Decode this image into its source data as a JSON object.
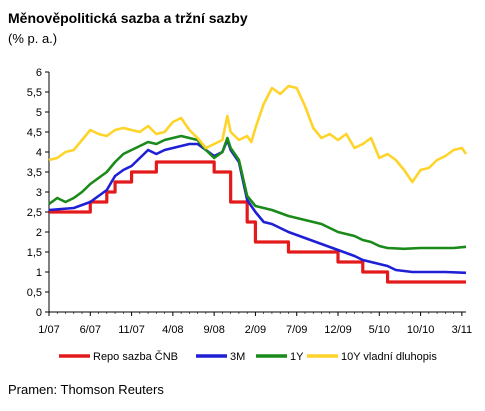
{
  "title": "Měnověpolitická sazba a tržní sazby",
  "subtitle": "(% p. a.)",
  "source": "Pramen: Thomson Reuters",
  "chart_data": {
    "type": "line",
    "title": "Měnověpolitická sazba a tržní sazby",
    "unit": "(% p. a.)",
    "x_tick_labels": [
      "1/07",
      "6/07",
      "11/07",
      "4/08",
      "9/08",
      "2/09",
      "7/09",
      "12/09",
      "5/10",
      "10/10",
      "3/11"
    ],
    "y_tick_labels": [
      "0",
      "0,5",
      "1",
      "1,5",
      "2",
      "2,5",
      "3",
      "3,5",
      "4",
      "4,5",
      "5",
      "5,5",
      "6"
    ],
    "ylim": [
      0,
      6
    ],
    "x_range_months": [
      0,
      50.5
    ],
    "grid": false,
    "legend_position": "bottom",
    "series": [
      {
        "name": "Repo sazba ČNB",
        "color": "#e31a1c",
        "style": "step",
        "points": [
          [
            0,
            2.5
          ],
          [
            5,
            2.75
          ],
          [
            7,
            3.0
          ],
          [
            8,
            3.25
          ],
          [
            10,
            3.5
          ],
          [
            13,
            3.75
          ],
          [
            20,
            3.5
          ],
          [
            22,
            2.75
          ],
          [
            24,
            2.25
          ],
          [
            25,
            1.75
          ],
          [
            29,
            1.5
          ],
          [
            35,
            1.25
          ],
          [
            38,
            1.0
          ],
          [
            41,
            1.0
          ],
          [
            41,
            0.75
          ],
          [
            50.5,
            0.75
          ]
        ]
      },
      {
        "name": "3M",
        "color": "#1f1fd6",
        "style": "line",
        "points": [
          [
            0,
            2.55
          ],
          [
            3,
            2.6
          ],
          [
            5,
            2.75
          ],
          [
            6,
            2.9
          ],
          [
            7,
            3.05
          ],
          [
            8,
            3.4
          ],
          [
            9,
            3.55
          ],
          [
            10,
            3.65
          ],
          [
            11,
            3.85
          ],
          [
            12,
            4.05
          ],
          [
            13,
            3.95
          ],
          [
            14,
            4.05
          ],
          [
            15,
            4.1
          ],
          [
            16,
            4.15
          ],
          [
            17,
            4.2
          ],
          [
            18,
            4.2
          ],
          [
            19,
            4.05
          ],
          [
            20,
            3.9
          ],
          [
            21,
            4.0
          ],
          [
            21.6,
            4.3
          ],
          [
            22,
            4.05
          ],
          [
            23,
            3.75
          ],
          [
            24,
            2.8
          ],
          [
            25,
            2.5
          ],
          [
            26,
            2.25
          ],
          [
            27,
            2.2
          ],
          [
            29,
            2.0
          ],
          [
            31,
            1.85
          ],
          [
            33,
            1.7
          ],
          [
            35,
            1.55
          ],
          [
            37,
            1.4
          ],
          [
            38,
            1.3
          ],
          [
            39,
            1.25
          ],
          [
            40,
            1.2
          ],
          [
            41,
            1.15
          ],
          [
            42,
            1.05
          ],
          [
            44,
            1.0
          ],
          [
            46,
            1.0
          ],
          [
            48,
            1.0
          ],
          [
            50.5,
            0.98
          ]
        ]
      },
      {
        "name": "1Y",
        "color": "#1a8a1a",
        "style": "line",
        "points": [
          [
            0,
            2.7
          ],
          [
            1,
            2.85
          ],
          [
            2,
            2.75
          ],
          [
            3,
            2.85
          ],
          [
            4,
            3.0
          ],
          [
            5,
            3.2
          ],
          [
            6,
            3.35
          ],
          [
            7,
            3.5
          ],
          [
            8,
            3.75
          ],
          [
            9,
            3.95
          ],
          [
            10,
            4.05
          ],
          [
            11,
            4.15
          ],
          [
            12,
            4.25
          ],
          [
            13,
            4.2
          ],
          [
            14,
            4.3
          ],
          [
            15,
            4.35
          ],
          [
            16,
            4.4
          ],
          [
            17,
            4.35
          ],
          [
            18,
            4.3
          ],
          [
            19,
            4.05
          ],
          [
            20,
            3.85
          ],
          [
            21,
            4.0
          ],
          [
            21.6,
            4.35
          ],
          [
            22,
            4.1
          ],
          [
            23,
            3.8
          ],
          [
            24,
            2.9
          ],
          [
            25,
            2.65
          ],
          [
            26,
            2.6
          ],
          [
            27,
            2.55
          ],
          [
            29,
            2.4
          ],
          [
            31,
            2.3
          ],
          [
            33,
            2.2
          ],
          [
            35,
            2.0
          ],
          [
            37,
            1.9
          ],
          [
            38,
            1.8
          ],
          [
            39,
            1.75
          ],
          [
            40,
            1.65
          ],
          [
            41,
            1.6
          ],
          [
            43,
            1.58
          ],
          [
            45,
            1.6
          ],
          [
            47,
            1.6
          ],
          [
            49,
            1.6
          ],
          [
            50.5,
            1.63
          ]
        ]
      },
      {
        "name": "10Y vladní dluhopis",
        "color": "#ffd42a",
        "style": "line",
        "points": [
          [
            0,
            3.8
          ],
          [
            1,
            3.85
          ],
          [
            2,
            4.0
          ],
          [
            3,
            4.05
          ],
          [
            4,
            4.3
          ],
          [
            5,
            4.55
          ],
          [
            6,
            4.45
          ],
          [
            7,
            4.4
          ],
          [
            8,
            4.55
          ],
          [
            9,
            4.6
          ],
          [
            10,
            4.55
          ],
          [
            11,
            4.5
          ],
          [
            12,
            4.65
          ],
          [
            13,
            4.45
          ],
          [
            14,
            4.5
          ],
          [
            15,
            4.75
          ],
          [
            16,
            4.85
          ],
          [
            17,
            4.55
          ],
          [
            18,
            4.35
          ],
          [
            19,
            4.1
          ],
          [
            20,
            4.2
          ],
          [
            21,
            4.3
          ],
          [
            21.6,
            4.9
          ],
          [
            22,
            4.5
          ],
          [
            23,
            4.3
          ],
          [
            24,
            4.4
          ],
          [
            24.5,
            4.25
          ],
          [
            25,
            4.6
          ],
          [
            26,
            5.2
          ],
          [
            27,
            5.6
          ],
          [
            28,
            5.45
          ],
          [
            29,
            5.65
          ],
          [
            30,
            5.6
          ],
          [
            31,
            5.15
          ],
          [
            32,
            4.6
          ],
          [
            33,
            4.35
          ],
          [
            34,
            4.45
          ],
          [
            35,
            4.3
          ],
          [
            36,
            4.45
          ],
          [
            37,
            4.1
          ],
          [
            38,
            4.2
          ],
          [
            39,
            4.35
          ],
          [
            40,
            3.85
          ],
          [
            41,
            3.95
          ],
          [
            42,
            3.8
          ],
          [
            43,
            3.55
          ],
          [
            44,
            3.25
          ],
          [
            45,
            3.55
          ],
          [
            46,
            3.6
          ],
          [
            47,
            3.8
          ],
          [
            48,
            3.9
          ],
          [
            49,
            4.05
          ],
          [
            50,
            4.1
          ],
          [
            50.5,
            3.95
          ]
        ]
      }
    ]
  }
}
